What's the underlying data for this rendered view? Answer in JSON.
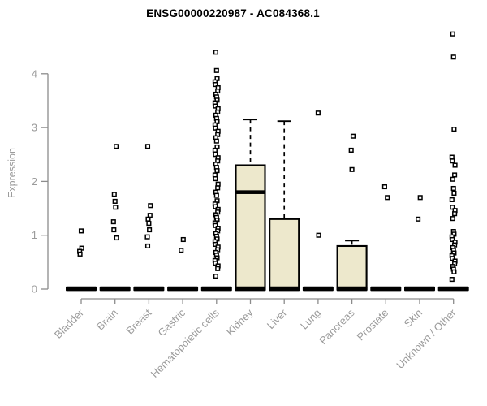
{
  "chart_data": {
    "type": "boxplot",
    "title": "ENSG00000220987 - AC084368.1",
    "ylabel": "Expression",
    "y_ticks": [
      0,
      1,
      2,
      3,
      4
    ],
    "ylim": [
      0,
      4.8
    ],
    "x_tick_label_rotation": 45,
    "grid": false,
    "colors": {
      "box_fill": "#EDE8CC",
      "box_stroke": "#000000",
      "median": "#000000",
      "zero_bar": "#000000",
      "axis_line": "#8c8c8c",
      "tick_label": "#9b9b9b",
      "point_stroke": "#000000",
      "point_fill": "#ffffff",
      "title": "#000000"
    },
    "categories": [
      {
        "name": "Bladder",
        "box": null,
        "zero_bar": true,
        "points": [
          1.08,
          0.76,
          0.7,
          0.65
        ]
      },
      {
        "name": "Brain",
        "box": null,
        "zero_bar": true,
        "points": [
          2.65,
          1.76,
          1.63,
          1.52,
          1.25,
          1.1,
          0.95
        ]
      },
      {
        "name": "Breast",
        "box": null,
        "zero_bar": true,
        "points": [
          2.65,
          1.55,
          1.37,
          1.3,
          1.22,
          1.1,
          0.97,
          0.8
        ]
      },
      {
        "name": "Gastric",
        "box": null,
        "zero_bar": true,
        "points": [
          0.92,
          0.72
        ]
      },
      {
        "name": "Hematopoietic cells",
        "box": null,
        "zero_bar": true,
        "points": [
          4.4,
          4.06,
          3.91,
          3.85,
          3.8,
          3.74,
          3.68,
          3.62,
          3.57,
          3.51,
          3.46,
          3.4,
          3.35,
          3.29,
          3.23,
          3.17,
          3.11,
          3.05,
          2.99,
          2.93,
          2.87,
          2.81,
          2.75,
          2.64,
          2.58,
          2.5,
          2.44,
          2.38,
          2.32,
          2.26,
          2.2,
          2.12,
          2.05,
          1.95,
          1.88,
          1.8,
          1.74,
          1.64,
          1.58,
          1.53,
          1.48,
          1.43,
          1.38,
          1.33,
          1.28,
          1.23,
          1.18,
          1.13,
          1.08,
          1.03,
          0.98,
          0.93,
          0.88,
          0.83,
          0.78,
          0.73,
          0.68,
          0.63,
          0.58,
          0.53,
          0.48,
          0.43,
          0.38,
          0.24
        ]
      },
      {
        "name": "Kidney",
        "box": {
          "q1": 0,
          "median": 1.8,
          "q3": 2.3,
          "whisker_low": 0,
          "whisker_high": 3.15
        },
        "zero_bar": true,
        "points": []
      },
      {
        "name": "Liver",
        "box": {
          "q1": 0,
          "median": 0,
          "q3": 1.3,
          "whisker_low": 0,
          "whisker_high": 3.12
        },
        "zero_bar": true,
        "points": []
      },
      {
        "name": "Lung",
        "box": null,
        "zero_bar": true,
        "points": [
          3.27,
          1.0
        ]
      },
      {
        "name": "Pancreas",
        "box": {
          "q1": 0,
          "median": 0,
          "q3": 0.8,
          "whisker_low": 0,
          "whisker_high": 0.9
        },
        "zero_bar": true,
        "points": [
          2.84,
          2.58,
          2.22
        ]
      },
      {
        "name": "Prostate",
        "box": null,
        "zero_bar": true,
        "points": [
          1.9,
          1.7
        ]
      },
      {
        "name": "Skin",
        "box": null,
        "zero_bar": true,
        "points": [
          1.7,
          1.3
        ]
      },
      {
        "name": "Unknown / Other",
        "box": null,
        "zero_bar": true,
        "points": [
          4.74,
          4.31,
          2.97,
          2.45,
          2.38,
          2.3,
          2.12,
          2.04,
          1.87,
          1.78,
          1.66,
          1.52,
          1.46,
          1.4,
          1.31,
          1.07,
          1.02,
          0.97,
          0.92,
          0.87,
          0.82,
          0.77,
          0.72,
          0.67,
          0.62,
          0.57,
          0.52,
          0.47,
          0.42,
          0.37,
          0.32,
          0.18
        ]
      }
    ]
  }
}
